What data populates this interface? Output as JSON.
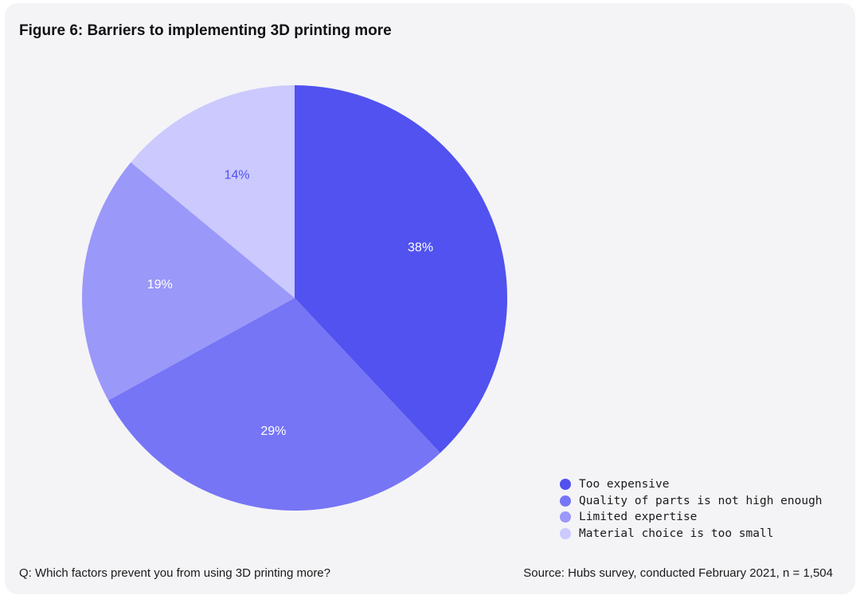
{
  "figure": {
    "title": "Figure 6: Barriers to implementing 3D printing more",
    "question": "Q: Which factors prevent you from using 3D printing more?",
    "source": "Source: Hubs survey, conducted February 2021, n = 1,504"
  },
  "chart_data": {
    "type": "pie",
    "title": "Figure 6: Barriers to implementing 3D printing more",
    "legend_position": "bottom-right",
    "start_angle": "12 o'clock, clockwise",
    "slices": [
      {
        "name": "Too expensive",
        "value": 38,
        "label": "38%",
        "color": "#5152ef",
        "label_color": "#ffffff"
      },
      {
        "name": "Quality of parts is not high enough",
        "value": 29,
        "label": "29%",
        "color": "#7675f5",
        "label_color": "#ffffff"
      },
      {
        "name": "Limited expertise",
        "value": 19,
        "label": "19%",
        "color": "#9a98f9",
        "label_color": "#ffffff"
      },
      {
        "name": "Material choice is too small",
        "value": 14,
        "label": "14%",
        "color": "#cbc9fd",
        "label_color": "#5152ef"
      }
    ]
  }
}
